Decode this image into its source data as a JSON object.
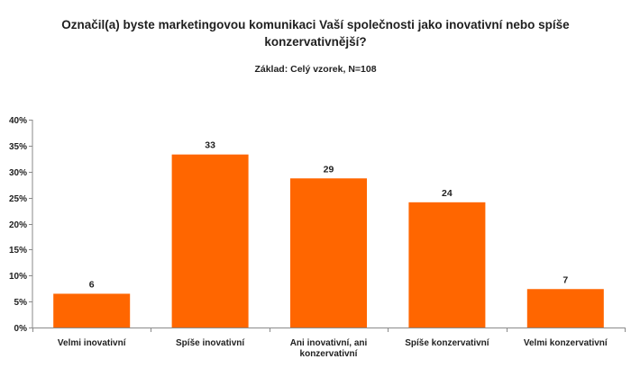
{
  "chart_data": {
    "type": "bar",
    "title_lines": [
      "Označil(a) byste marketingovou komunikaci Vaší společnosti jako inovativní nebo spíše",
      "konzervativnější?"
    ],
    "subtitle": "Základ: Celý vzorek, N=108",
    "categories": [
      [
        "Velmi inovativní"
      ],
      [
        "Spíše inovativní"
      ],
      [
        "Ani inovativní, ani",
        "konzervativní"
      ],
      [
        "Spíše konzervativní"
      ],
      [
        "Velmi konzervativní"
      ]
    ],
    "values": [
      6,
      33,
      29,
      24,
      7
    ],
    "data_labels": [
      "6",
      "33",
      "29",
      "24",
      "7"
    ],
    "bar_values_percent": [
      6.5,
      33.3,
      28.7,
      24.1,
      7.4
    ],
    "ylim": [
      0,
      40
    ],
    "yticks": [
      0,
      5,
      10,
      15,
      20,
      25,
      30,
      35,
      40
    ],
    "ytick_labels": [
      "0%",
      "5%",
      "10%",
      "15%",
      "20%",
      "25%",
      "30%",
      "35%",
      "40%"
    ],
    "xlabel": "",
    "ylabel": "",
    "bar_color": "#ff6600",
    "axis_color": "#8a8a8a"
  }
}
